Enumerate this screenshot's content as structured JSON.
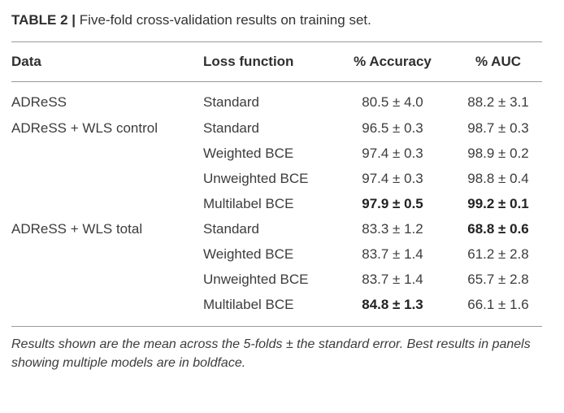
{
  "caption": {
    "label": "TABLE 2 |",
    "text": "Five-fold cross-validation results on training set."
  },
  "table": {
    "headers": {
      "data": "Data",
      "loss": "Loss function",
      "accuracy": "% Accuracy",
      "auc": "% AUC"
    },
    "rows": [
      {
        "data": "ADReSS",
        "loss": "Standard",
        "accuracy": "80.5 ± 4.0",
        "auc": "88.2 ± 3.1",
        "accuracy_bold": false,
        "auc_bold": false
      },
      {
        "data": "ADReSS + WLS control",
        "loss": "Standard",
        "accuracy": "96.5 ± 0.3",
        "auc": "98.7 ± 0.3",
        "accuracy_bold": false,
        "auc_bold": false
      },
      {
        "data": "",
        "loss": "Weighted BCE",
        "accuracy": "97.4 ± 0.3",
        "auc": "98.9 ± 0.2",
        "accuracy_bold": false,
        "auc_bold": false
      },
      {
        "data": "",
        "loss": "Unweighted BCE",
        "accuracy": "97.4 ± 0.3",
        "auc": "98.8 ± 0.4",
        "accuracy_bold": false,
        "auc_bold": false
      },
      {
        "data": "",
        "loss": "Multilabel BCE",
        "accuracy": "97.9 ± 0.5",
        "auc": "99.2 ± 0.1",
        "accuracy_bold": true,
        "auc_bold": true
      },
      {
        "data": "ADReSS + WLS total",
        "loss": "Standard",
        "accuracy": "83.3 ± 1.2",
        "auc": "68.8 ± 0.6",
        "accuracy_bold": false,
        "auc_bold": true
      },
      {
        "data": "",
        "loss": "Weighted BCE",
        "accuracy": "83.7 ± 1.4",
        "auc": "61.2 ± 2.8",
        "accuracy_bold": false,
        "auc_bold": false
      },
      {
        "data": "",
        "loss": "Unweighted BCE",
        "accuracy": "83.7 ± 1.4",
        "auc": "65.7 ± 2.8",
        "accuracy_bold": false,
        "auc_bold": false
      },
      {
        "data": "",
        "loss": "Multilabel BCE",
        "accuracy": "84.8 ± 1.3",
        "auc": "66.1 ± 1.6",
        "accuracy_bold": true,
        "auc_bold": false
      }
    ]
  },
  "footnote": "Results shown are the mean across the 5-folds ± the standard error. Best results in panels showing multiple models are in boldface."
}
